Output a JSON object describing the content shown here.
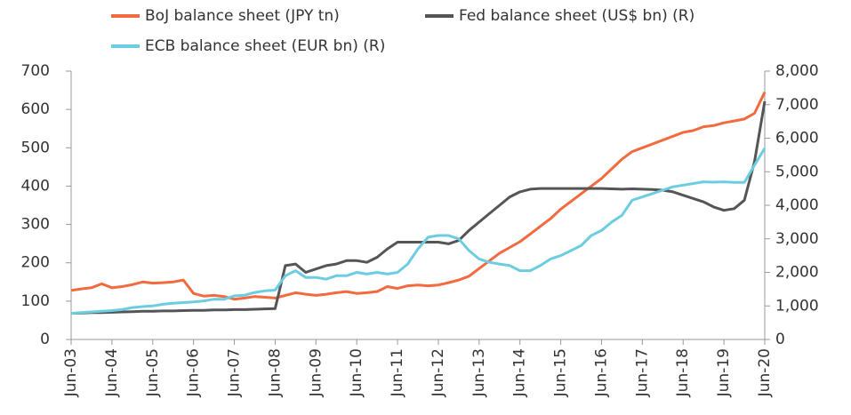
{
  "chart_data": {
    "type": "line",
    "categories": [
      "Jun-03",
      null,
      null,
      null,
      "Jun-04",
      null,
      null,
      null,
      "Jun-05",
      null,
      null,
      null,
      "Jun-06",
      null,
      null,
      null,
      "Jun-07",
      null,
      null,
      null,
      "Jun-08",
      null,
      null,
      null,
      "Jun-09",
      null,
      null,
      null,
      "Jun-10",
      null,
      null,
      null,
      "Jun-11",
      null,
      null,
      null,
      "Jun-12",
      null,
      null,
      null,
      "Jun-13",
      null,
      null,
      null,
      "Jun-14",
      null,
      null,
      null,
      "Jun-15",
      null,
      null,
      null,
      "Jun-16",
      null,
      null,
      null,
      "Jun-17",
      null,
      null,
      null,
      "Jun-18",
      null,
      null,
      null,
      "Jun-19",
      null,
      null,
      null,
      "Jun-20"
    ],
    "series": [
      {
        "name": "BoJ balance sheet (JPY tn)",
        "color": "#f26a3d",
        "values": [
          128,
          132,
          135,
          145,
          135,
          138,
          143,
          150,
          147,
          148,
          150,
          155,
          120,
          113,
          115,
          112,
          105,
          108,
          112,
          110,
          108,
          115,
          122,
          118,
          115,
          118,
          122,
          125,
          120,
          122,
          125,
          138,
          133,
          140,
          142,
          140,
          142,
          148,
          155,
          165,
          185,
          205,
          225,
          240,
          255,
          275,
          295,
          315,
          340,
          360,
          380,
          400,
          420,
          445,
          470,
          490,
          500,
          510,
          520,
          530,
          540,
          545,
          555,
          558,
          565,
          570,
          575,
          590,
          645
        ]
      },
      {
        "name": "Fed balance sheet (US$ bn) (R)",
        "color": "#555555",
        "axis": "y2",
        "values": [
          780,
          790,
          800,
          800,
          810,
          820,
          830,
          840,
          840,
          850,
          850,
          860,
          870,
          870,
          880,
          880,
          890,
          890,
          900,
          910,
          920,
          2200,
          2250,
          2000,
          2100,
          2200,
          2250,
          2350,
          2350,
          2300,
          2450,
          2700,
          2900,
          2900,
          2900,
          2900,
          2900,
          2850,
          2950,
          3250,
          3500,
          3750,
          4000,
          4250,
          4400,
          4480,
          4500,
          4500,
          4500,
          4500,
          4500,
          4500,
          4500,
          4490,
          4480,
          4490,
          4480,
          4470,
          4450,
          4400,
          4300,
          4200,
          4100,
          3950,
          3850,
          3900,
          4150,
          5300,
          7100
        ]
      },
      {
        "name": "ECB balance sheet (EUR bn) (R)",
        "color": "#6dcde0",
        "axis": "y2",
        "values": [
          780,
          800,
          820,
          840,
          860,
          890,
          950,
          980,
          1000,
          1050,
          1080,
          1100,
          1120,
          1150,
          1200,
          1200,
          1300,
          1320,
          1400,
          1450,
          1470,
          1900,
          2050,
          1850,
          1850,
          1800,
          1900,
          1900,
          2000,
          1950,
          2000,
          1950,
          2000,
          2250,
          2700,
          3050,
          3100,
          3100,
          3000,
          2650,
          2400,
          2300,
          2250,
          2200,
          2050,
          2050,
          2200,
          2400,
          2500,
          2650,
          2800,
          3100,
          3250,
          3500,
          3700,
          4150,
          4250,
          4350,
          4450,
          4550,
          4600,
          4650,
          4700,
          4690,
          4700,
          4680,
          4680,
          5200,
          5700
        ]
      }
    ],
    "ylim": [
      0,
      700
    ],
    "yticks": [
      0,
      100,
      200,
      300,
      400,
      500,
      600,
      700
    ],
    "y2lim": [
      0,
      8000
    ],
    "y2ticks": [
      0,
      {
        "value": 1000,
        "label": "1,000"
      },
      {
        "value": 2000,
        "label": "2,000"
      },
      {
        "value": 3000,
        "label": "3,000"
      },
      {
        "value": 4000,
        "label": "4,000"
      },
      {
        "value": 5000,
        "label": "5,000"
      },
      {
        "value": 6000,
        "label": "6,000"
      },
      {
        "value": 7000,
        "label": "7,000"
      },
      {
        "value": 8000,
        "label": "8,000"
      }
    ],
    "grid": false
  }
}
